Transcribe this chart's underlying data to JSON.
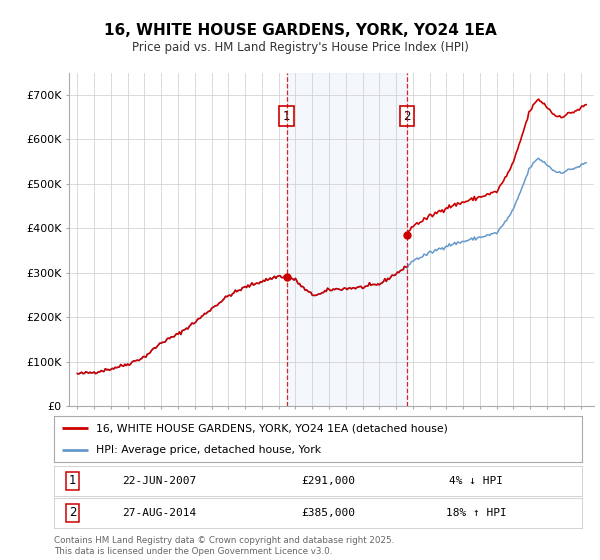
{
  "title": "16, WHITE HOUSE GARDENS, YORK, YO24 1EA",
  "subtitle": "Price paid vs. HM Land Registry's House Price Index (HPI)",
  "background_color": "#ffffff",
  "plot_bg_color": "#ffffff",
  "grid_color": "#cccccc",
  "sale1_date": "22-JUN-2007",
  "sale1_price": 291000,
  "sale1_year": 2007.47,
  "sale1_hpi_diff": "4% ↓ HPI",
  "sale2_date": "27-AUG-2014",
  "sale2_price": 385000,
  "sale2_year": 2014.65,
  "sale2_hpi_diff": "18% ↑ HPI",
  "legend_line1": "16, WHITE HOUSE GARDENS, YORK, YO24 1EA (detached house)",
  "legend_line2": "HPI: Average price, detached house, York",
  "footer": "Contains HM Land Registry data © Crown copyright and database right 2025.\nThis data is licensed under the Open Government Licence v3.0.",
  "red_color": "#cc0000",
  "blue_color": "#6699cc",
  "ylim_min": 0,
  "ylim_max": 750000,
  "xlim_min": 1994.5,
  "xlim_max": 2025.8,
  "yticks": [
    0,
    100000,
    200000,
    300000,
    400000,
    500000,
    600000,
    700000
  ],
  "ytick_labels": [
    "£0",
    "£100K",
    "£200K",
    "£300K",
    "£400K",
    "£500K",
    "£600K",
    "£700K"
  ],
  "xticks": [
    1995,
    1996,
    1997,
    1998,
    1999,
    2000,
    2001,
    2002,
    2003,
    2004,
    2005,
    2006,
    2007,
    2008,
    2009,
    2010,
    2011,
    2012,
    2013,
    2014,
    2015,
    2016,
    2017,
    2018,
    2019,
    2020,
    2021,
    2022,
    2023,
    2024,
    2025
  ]
}
